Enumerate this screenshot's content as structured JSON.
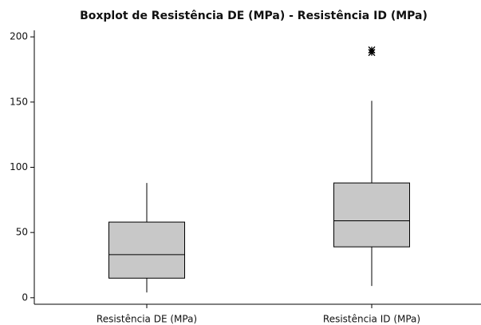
{
  "chart_data": {
    "type": "boxplot",
    "title": "Boxplot de Resistência DE (MPa) - Resistência ID (MPa)",
    "categories": [
      "Resistência DE (MPa)",
      "Resistência ID (MPa)"
    ],
    "boxes": [
      {
        "min": 4,
        "q1": 15,
        "median": 33,
        "q3": 58,
        "max": 88,
        "outliers": []
      },
      {
        "min": 9,
        "q1": 39,
        "median": 59,
        "q3": 88,
        "max": 151,
        "outliers": [
          188,
          190
        ]
      }
    ],
    "color": "#c8c8c8",
    "ylim": [
      -5,
      205
    ],
    "yticks": [
      0,
      50,
      100,
      150,
      200
    ]
  }
}
